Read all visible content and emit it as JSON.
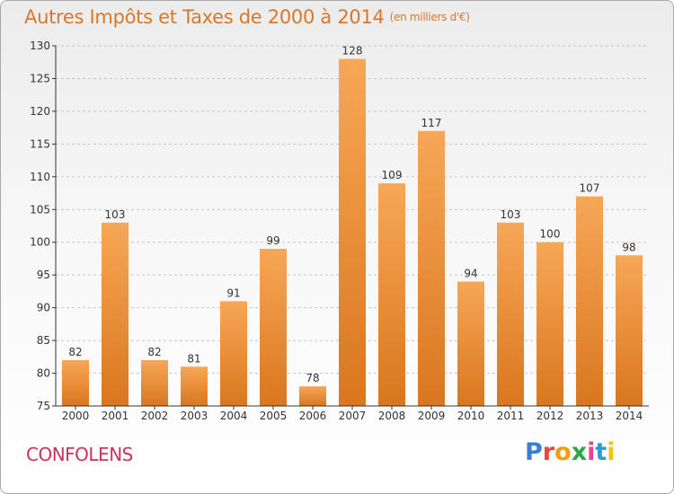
{
  "header": {
    "title": "Autres Impôts et Taxes de 2000 à 2014",
    "unit": "(en milliers d'€)"
  },
  "footer": {
    "town": "CONFOLENS",
    "logo": {
      "text": "Proxiti",
      "letter_colors": [
        "#3a7fd5",
        "#e8473a",
        "#f39c12",
        "#2ba84a",
        "#e84393",
        "#2e9bd6",
        "#f1c40f"
      ]
    }
  },
  "colors": {
    "bar_light": "#f7a757",
    "bar_dark": "#d9771e",
    "axis": "#333333",
    "grid": "#c8c8c8"
  },
  "chart_data": {
    "type": "bar",
    "categories": [
      "2000",
      "2001",
      "2002",
      "2003",
      "2004",
      "2005",
      "2006",
      "2007",
      "2008",
      "2009",
      "2010",
      "2011",
      "2012",
      "2013",
      "2014"
    ],
    "values": [
      82,
      103,
      82,
      81,
      91,
      99,
      78,
      128,
      109,
      117,
      94,
      103,
      100,
      107,
      98
    ],
    "title": "Autres Impôts et Taxes de 2000 à 2014",
    "ylim": [
      75,
      130
    ],
    "yticks": [
      75,
      80,
      85,
      90,
      95,
      100,
      105,
      110,
      115,
      120,
      125,
      130
    ],
    "grid": true
  }
}
